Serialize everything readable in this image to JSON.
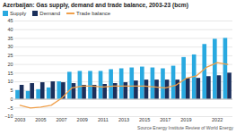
{
  "chart_data": {
    "type": "bar",
    "title": "Azerbaijan: Gas supply, demand and trade balance, 2003-23 (bcm)",
    "caption": "Source Energy Institute Review of World Energy",
    "categories": [
      "2003",
      null,
      "2005",
      null,
      "2007",
      null,
      "2009",
      null,
      "2011",
      null,
      "2013",
      null,
      "2015",
      null,
      "2017",
      null,
      "2019",
      null,
      null,
      "2022",
      null
    ],
    "series": [
      {
        "name": "Supply",
        "type": "bar",
        "color": "#29a9e0",
        "values": [
          5,
          4.5,
          5.5,
          6.5,
          10,
          15.5,
          16,
          16,
          16,
          17,
          17.5,
          18,
          18.5,
          18,
          17.5,
          19,
          24,
          25.5,
          31.5,
          34.5,
          35
        ]
      },
      {
        "name": "Demand",
        "type": "bar",
        "color": "#1b2f5b",
        "values": [
          8,
          9,
          9.5,
          10,
          9.5,
          9,
          8,
          8,
          8.5,
          9,
          9.5,
          10.5,
          11,
          11,
          11,
          11,
          12,
          12,
          13,
          13.5,
          15
        ]
      },
      {
        "name": "Trade balance",
        "type": "line",
        "color": "#f0a04b",
        "values": [
          -3.5,
          -5,
          -4.5,
          -3.5,
          0.5,
          6.5,
          7.5,
          7.5,
          7,
          7.5,
          7.5,
          7.5,
          7.5,
          7,
          6.5,
          8,
          12,
          13.5,
          18.5,
          21,
          20
        ]
      }
    ],
    "ylim": [
      -10,
      45
    ],
    "yticks": [
      -10,
      -5,
      0,
      5,
      10,
      15,
      20,
      25,
      30,
      35,
      40,
      45
    ],
    "grid": true,
    "legend": "top"
  }
}
